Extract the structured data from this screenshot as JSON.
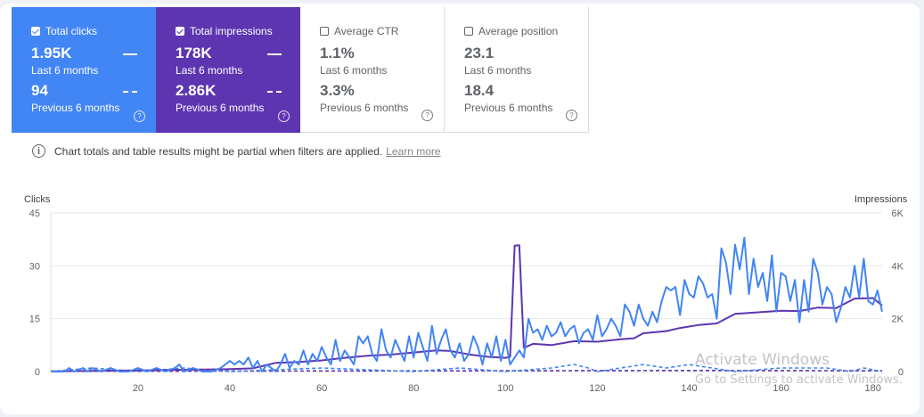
{
  "metrics": [
    {
      "id": "clicks",
      "label": "Total clicks",
      "checked": true,
      "current": "1.95K",
      "current_label": "Last 6 months",
      "previous": "94",
      "previous_label": "Previous 6 months"
    },
    {
      "id": "impressions",
      "label": "Total impressions",
      "checked": true,
      "current": "178K",
      "current_label": "Last 6 months",
      "previous": "2.86K",
      "previous_label": "Previous 6 months"
    },
    {
      "id": "ctr",
      "label": "Average CTR",
      "checked": false,
      "current": "1.1%",
      "current_label": "Last 6 months",
      "previous": "3.3%",
      "previous_label": "Previous 6 months"
    },
    {
      "id": "position",
      "label": "Average position",
      "checked": false,
      "current": "23.1",
      "current_label": "Last 6 months",
      "previous": "18.4",
      "previous_label": "Previous 6 months"
    }
  ],
  "info": {
    "text": "Chart totals and table results might be partial when filters are applied.",
    "link": "Learn more"
  },
  "watermark": {
    "line1": "Activate Windows",
    "line2": "Go to Settings to activate Windows."
  },
  "colors": {
    "clicks": "#4285f4",
    "impressions": "#5e35b1"
  },
  "chart_data": {
    "type": "line",
    "xlabel": "",
    "y_left_label": "Clicks",
    "y_right_label": "Impressions",
    "x_range": [
      1,
      182
    ],
    "x_ticks": [
      20,
      40,
      60,
      80,
      100,
      120,
      140,
      160,
      180
    ],
    "y_left": {
      "range": [
        0,
        45
      ],
      "ticks": [
        0,
        15,
        30,
        45
      ],
      "tick_labels": [
        "0",
        "15",
        "30",
        "45"
      ]
    },
    "y_right": {
      "range": [
        0,
        6000
      ],
      "ticks": [
        0,
        2000,
        4000,
        6000
      ],
      "tick_labels": [
        "0",
        "2K",
        "4K",
        "6K"
      ]
    },
    "grid": true,
    "series": [
      {
        "name": "Total clicks",
        "axis": "left",
        "style": "solid",
        "color": "#4285f4",
        "points": [
          [
            1,
            0
          ],
          [
            4,
            0
          ],
          [
            5,
            1
          ],
          [
            6,
            0
          ],
          [
            8,
            1
          ],
          [
            9,
            0
          ],
          [
            10,
            1
          ],
          [
            12,
            0
          ],
          [
            14,
            1
          ],
          [
            16,
            0
          ],
          [
            18,
            0
          ],
          [
            20,
            1
          ],
          [
            22,
            0
          ],
          [
            24,
            1
          ],
          [
            26,
            0
          ],
          [
            28,
            1
          ],
          [
            29,
            2
          ],
          [
            30,
            0
          ],
          [
            32,
            1
          ],
          [
            34,
            0
          ],
          [
            36,
            0
          ],
          [
            38,
            1
          ],
          [
            40,
            3
          ],
          [
            41,
            2
          ],
          [
            42,
            3
          ],
          [
            43,
            2
          ],
          [
            44,
            4
          ],
          [
            45,
            1
          ],
          [
            46,
            3
          ],
          [
            47,
            0
          ],
          [
            48,
            2
          ],
          [
            50,
            0
          ],
          [
            51,
            2
          ],
          [
            52,
            5
          ],
          [
            53,
            1
          ],
          [
            54,
            3
          ],
          [
            55,
            2
          ],
          [
            56,
            6
          ],
          [
            57,
            2
          ],
          [
            58,
            5
          ],
          [
            59,
            3
          ],
          [
            60,
            7
          ],
          [
            61,
            4
          ],
          [
            62,
            2
          ],
          [
            63,
            9
          ],
          [
            64,
            3
          ],
          [
            65,
            6
          ],
          [
            66,
            4
          ],
          [
            67,
            2
          ],
          [
            68,
            10
          ],
          [
            69,
            8
          ],
          [
            70,
            10
          ],
          [
            71,
            5
          ],
          [
            72,
            3
          ],
          [
            73,
            12
          ],
          [
            74,
            6
          ],
          [
            75,
            4
          ],
          [
            76,
            9
          ],
          [
            77,
            6
          ],
          [
            78,
            3
          ],
          [
            79,
            10
          ],
          [
            80,
            4
          ],
          [
            81,
            11
          ],
          [
            82,
            7
          ],
          [
            83,
            3
          ],
          [
            84,
            13
          ],
          [
            85,
            5
          ],
          [
            86,
            9
          ],
          [
            87,
            12
          ],
          [
            88,
            6
          ],
          [
            89,
            4
          ],
          [
            90,
            8
          ],
          [
            91,
            3
          ],
          [
            92,
            5
          ],
          [
            93,
            10
          ],
          [
            94,
            7
          ],
          [
            95,
            2
          ],
          [
            96,
            8
          ],
          [
            97,
            4
          ],
          [
            98,
            10
          ],
          [
            99,
            3
          ],
          [
            100,
            9
          ],
          [
            101,
            2
          ],
          [
            102,
            4
          ],
          [
            103,
            6
          ],
          [
            104,
            4
          ],
          [
            105,
            15
          ],
          [
            106,
            11
          ],
          [
            107,
            12
          ],
          [
            108,
            9
          ],
          [
            109,
            13
          ],
          [
            110,
            10
          ],
          [
            111,
            11
          ],
          [
            112,
            14
          ],
          [
            113,
            10
          ],
          [
            114,
            12
          ],
          [
            115,
            13
          ],
          [
            116,
            8
          ],
          [
            117,
            11
          ],
          [
            118,
            12
          ],
          [
            119,
            9
          ],
          [
            120,
            16
          ],
          [
            121,
            10
          ],
          [
            122,
            12
          ],
          [
            123,
            15
          ],
          [
            124,
            13
          ],
          [
            125,
            10
          ],
          [
            126,
            19
          ],
          [
            127,
            17
          ],
          [
            128,
            13
          ],
          [
            129,
            19
          ],
          [
            130,
            15
          ],
          [
            131,
            13
          ],
          [
            132,
            17
          ],
          [
            133,
            14
          ],
          [
            134,
            20
          ],
          [
            135,
            24
          ],
          [
            136,
            23
          ],
          [
            137,
            24
          ],
          [
            138,
            16
          ],
          [
            139,
            26
          ],
          [
            140,
            22
          ],
          [
            141,
            21
          ],
          [
            142,
            27
          ],
          [
            143,
            25
          ],
          [
            144,
            21
          ],
          [
            145,
            22
          ],
          [
            146,
            15
          ],
          [
            147,
            35
          ],
          [
            148,
            31
          ],
          [
            149,
            22
          ],
          [
            150,
            36
          ],
          [
            151,
            29
          ],
          [
            152,
            38
          ],
          [
            153,
            22
          ],
          [
            154,
            32
          ],
          [
            155,
            24
          ],
          [
            156,
            28
          ],
          [
            157,
            20
          ],
          [
            158,
            33
          ],
          [
            159,
            17
          ],
          [
            160,
            28
          ],
          [
            161,
            27
          ],
          [
            162,
            20
          ],
          [
            163,
            26
          ],
          [
            164,
            14
          ],
          [
            165,
            26
          ],
          [
            166,
            17
          ],
          [
            167,
            32
          ],
          [
            168,
            28
          ],
          [
            169,
            19
          ],
          [
            170,
            24
          ],
          [
            171,
            22
          ],
          [
            172,
            14
          ],
          [
            173,
            18
          ],
          [
            174,
            24
          ],
          [
            175,
            21
          ],
          [
            176,
            30
          ],
          [
            177,
            21
          ],
          [
            178,
            32
          ],
          [
            179,
            20
          ],
          [
            180,
            19
          ],
          [
            181,
            23
          ],
          [
            182,
            17
          ]
        ]
      },
      {
        "name": "Total impressions",
        "axis": "right",
        "style": "solid",
        "color": "#5e35b1",
        "points": [
          [
            1,
            10
          ],
          [
            20,
            40
          ],
          [
            40,
            90
          ],
          [
            45,
            120
          ],
          [
            50,
            330
          ],
          [
            55,
            360
          ],
          [
            60,
            420
          ],
          [
            65,
            520
          ],
          [
            70,
            600
          ],
          [
            75,
            640
          ],
          [
            80,
            720
          ],
          [
            85,
            800
          ],
          [
            88,
            780
          ],
          [
            92,
            650
          ],
          [
            96,
            560
          ],
          [
            100,
            520
          ],
          [
            101,
            560
          ],
          [
            102,
            4760
          ],
          [
            103,
            4780
          ],
          [
            104,
            900
          ],
          [
            106,
            1050
          ],
          [
            110,
            1000
          ],
          [
            115,
            1150
          ],
          [
            120,
            1130
          ],
          [
            125,
            1220
          ],
          [
            128,
            1260
          ],
          [
            130,
            1450
          ],
          [
            135,
            1530
          ],
          [
            138,
            1650
          ],
          [
            142,
            1760
          ],
          [
            146,
            1820
          ],
          [
            150,
            2180
          ],
          [
            155,
            2240
          ],
          [
            160,
            2300
          ],
          [
            164,
            2290
          ],
          [
            168,
            2420
          ],
          [
            172,
            2400
          ],
          [
            176,
            2760
          ],
          [
            180,
            2780
          ],
          [
            182,
            2500
          ]
        ]
      },
      {
        "name": "Total clicks (Previous 6 months)",
        "axis": "left",
        "style": "dashed",
        "color": "#4285f4",
        "points": [
          [
            1,
            0
          ],
          [
            10,
            1
          ],
          [
            20,
            0
          ],
          [
            30,
            1
          ],
          [
            40,
            0
          ],
          [
            60,
            1
          ],
          [
            80,
            0
          ],
          [
            90,
            1
          ],
          [
            100,
            0
          ],
          [
            110,
            1
          ],
          [
            115,
            2
          ],
          [
            118,
            1
          ],
          [
            120,
            0
          ],
          [
            130,
            2
          ],
          [
            135,
            1
          ],
          [
            140,
            2
          ],
          [
            150,
            0
          ],
          [
            160,
            1
          ],
          [
            170,
            1
          ],
          [
            175,
            0
          ],
          [
            178,
            1
          ],
          [
            182,
            0
          ]
        ]
      },
      {
        "name": "Total impressions (Previous 6 months)",
        "axis": "right",
        "style": "dashed",
        "color": "#5e35b1",
        "points": [
          [
            1,
            10
          ],
          [
            50,
            20
          ],
          [
            100,
            30
          ],
          [
            140,
            40
          ],
          [
            182,
            30
          ]
        ]
      }
    ]
  }
}
